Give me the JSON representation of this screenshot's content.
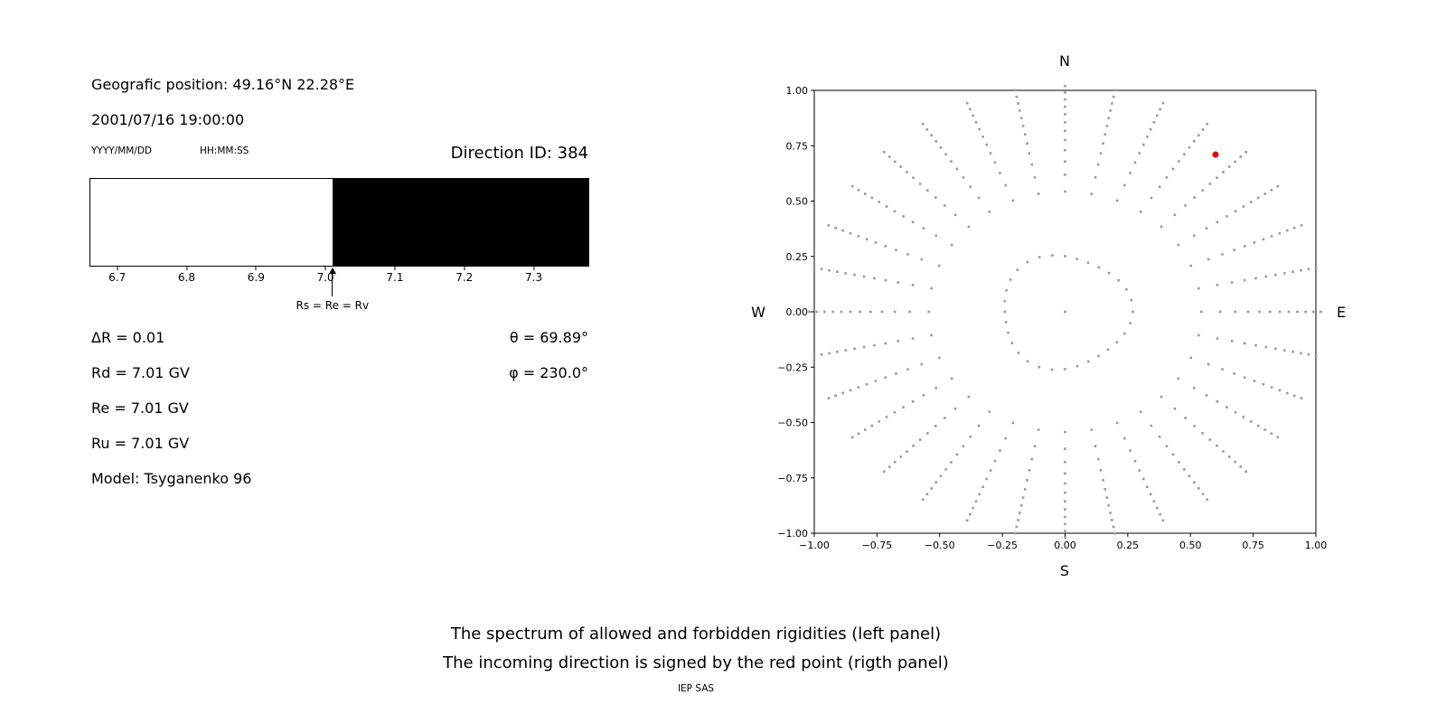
{
  "info": {
    "geo_position": "Geografic position: 49.16°N 22.28°E",
    "datetime": "2001/07/16 19:00:00",
    "date_format": "YYYY/MM/DD",
    "time_format": "HH:MM:SS",
    "direction_id": "Direction ID: 384",
    "delta_r": "ΔR = 0.01",
    "rd": "Rd = 7.01 GV",
    "re": "Re = 7.01 GV",
    "ru": "Ru = 7.01 GV",
    "model": "Model: Tsyganenko 96",
    "theta": "θ = 69.89°",
    "phi": "φ = 230.0°"
  },
  "captions": {
    "line1": "The spectrum of allowed and forbidden rigidities (left panel)",
    "line2": "The incoming direction is signed by the red point (rigth panel)",
    "credit": "IEP SAS"
  },
  "chart_data": [
    {
      "type": "bar",
      "description": "Rigidity spectrum: white region = allowed rigidities, black region = forbidden rigidities",
      "x_range": [
        6.66,
        7.38
      ],
      "x_ticks": [
        6.7,
        6.8,
        6.9,
        7.0,
        7.1,
        7.2,
        7.3
      ],
      "boundary": 7.01,
      "allowed_color": "#ffffff",
      "forbidden_color": "#000000",
      "arrow_x": 7.01,
      "arrow_label": "Rs = Re = Rv"
    },
    {
      "type": "scatter",
      "description": "Asymptotic directions map with radial spokes of gray dots; red point marks the incoming direction",
      "xlim": [
        -1,
        1
      ],
      "ylim": [
        -1,
        1
      ],
      "x_ticks": [
        -1,
        -0.75,
        -0.5,
        -0.25,
        0,
        0.25,
        0.5,
        0.75,
        1
      ],
      "y_ticks": [
        1,
        0.75,
        0.5,
        0.25,
        0,
        -0.25,
        -0.5,
        -0.75,
        -1
      ],
      "compass": {
        "north": "N",
        "south": "S",
        "east": "E",
        "west": "W"
      },
      "dot_color": "#9b9b9b",
      "spokes": {
        "count": 32,
        "start_angle_deg": 0,
        "step_deg": 11.25,
        "r_min": 0.38,
        "r_max": 1.02,
        "dots_per_spoke": 12,
        "density_power": 0.55
      },
      "inner_ring": {
        "radius": 0.255,
        "dots": 32
      },
      "center_dot": true,
      "red_point": {
        "x": 0.6,
        "y": 0.71,
        "color": "#e60000"
      }
    }
  ]
}
